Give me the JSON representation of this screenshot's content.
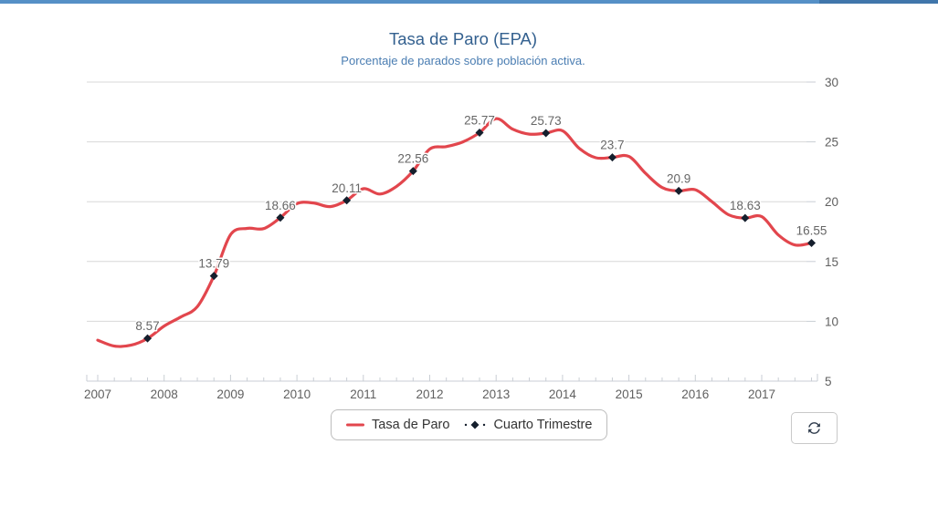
{
  "page": {
    "accent_bar_color": "#5590c6",
    "accent_bar_right_color": "#4076ab",
    "title_color": "#33608f",
    "subtitle_color": "#4a7db2"
  },
  "chart_data": {
    "type": "line",
    "title": "Tasa de Paro (EPA)",
    "subtitle": "Porcentaje de parados sobre población activa.",
    "xlabel": "",
    "ylabel": "",
    "ylim": [
      5,
      30
    ],
    "yticks": [
      5,
      10,
      15,
      20,
      25,
      30
    ],
    "xticks": [
      2007,
      2008,
      2009,
      2010,
      2011,
      2012,
      2013,
      2014,
      2015,
      2016,
      2017
    ],
    "grid": true,
    "legend_position": "bottom",
    "grid_color": "#d8d8d8",
    "axis_color": "#c9ced4",
    "x": [
      2007.0,
      2007.25,
      2007.5,
      2007.75,
      2008.0,
      2008.25,
      2008.5,
      2008.75,
      2009.0,
      2009.25,
      2009.5,
      2009.75,
      2010.0,
      2010.25,
      2010.5,
      2010.75,
      2011.0,
      2011.25,
      2011.5,
      2011.75,
      2012.0,
      2012.25,
      2012.5,
      2012.75,
      2013.0,
      2013.25,
      2013.5,
      2013.75,
      2014.0,
      2014.25,
      2014.5,
      2014.75,
      2015.0,
      2015.25,
      2015.5,
      2015.75,
      2016.0,
      2016.25,
      2016.5,
      2016.75,
      2017.0,
      2017.25,
      2017.5,
      2017.75
    ],
    "series": [
      {
        "name": "Tasa de Paro",
        "type": "spline",
        "color": "#e2464d",
        "values": [
          8.42,
          7.93,
          8.0,
          8.57,
          9.6,
          10.36,
          11.23,
          13.79,
          17.24,
          17.77,
          17.75,
          18.66,
          19.84,
          19.89,
          19.59,
          20.11,
          21.08,
          20.64,
          21.28,
          22.56,
          24.4,
          24.6,
          25.0,
          25.77,
          26.94,
          26.06,
          25.65,
          25.73,
          25.93,
          24.47,
          23.67,
          23.7,
          23.78,
          22.37,
          21.18,
          20.9,
          21.0,
          20.0,
          18.91,
          18.63,
          18.75,
          17.22,
          16.38,
          16.55
        ]
      },
      {
        "name": "Cuarto Trimestre",
        "type": "scatter",
        "marker": "diamond",
        "color": "#151f2d",
        "points": [
          {
            "x": 2007.75,
            "value": 8.57,
            "label": "8.57"
          },
          {
            "x": 2008.75,
            "value": 13.79,
            "label": "13.79"
          },
          {
            "x": 2009.75,
            "value": 18.66,
            "label": "18.66"
          },
          {
            "x": 2010.75,
            "value": 20.11,
            "label": "20.11"
          },
          {
            "x": 2011.75,
            "value": 22.56,
            "label": "22.56"
          },
          {
            "x": 2012.75,
            "value": 25.77,
            "label": "25.77"
          },
          {
            "x": 2013.75,
            "value": 25.73,
            "label": "25.73"
          },
          {
            "x": 2014.75,
            "value": 23.7,
            "label": "23.7"
          },
          {
            "x": 2015.75,
            "value": 20.9,
            "label": "20.9"
          },
          {
            "x": 2016.75,
            "value": 18.63,
            "label": "18.63"
          },
          {
            "x": 2017.75,
            "value": 16.55,
            "label": "16.55"
          }
        ]
      }
    ]
  },
  "controls": {
    "refresh_button": {
      "icon": "refresh-icon"
    }
  }
}
